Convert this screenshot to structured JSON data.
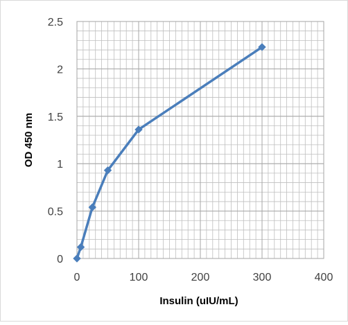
{
  "chart_data": {
    "type": "line",
    "title": "",
    "xlabel": "Insulin (uIU/mL)",
    "ylabel": "OD 450 nm",
    "xlim": [
      0,
      400
    ],
    "ylim": [
      0,
      2.5
    ],
    "x_ticks": [
      0,
      100,
      200,
      300,
      400
    ],
    "y_ticks": [
      0,
      0.5,
      1,
      1.5,
      2,
      2.5
    ],
    "x_tick_labels": [
      "0",
      "100",
      "200",
      "300",
      "400"
    ],
    "y_tick_labels": [
      "0",
      "0.5",
      "1",
      "1.5",
      "2",
      "2.5"
    ],
    "grid": true,
    "series": [
      {
        "x": [
          0,
          6.25,
          25,
          50,
          100,
          300
        ],
        "y": [
          0.0,
          0.12,
          0.54,
          0.93,
          1.36,
          2.23
        ]
      }
    ],
    "colors": {
      "series": "#4a7ebb",
      "grid": "#a6a6a6",
      "frame": "#d9d9d9",
      "tick_text": "#404040"
    }
  }
}
